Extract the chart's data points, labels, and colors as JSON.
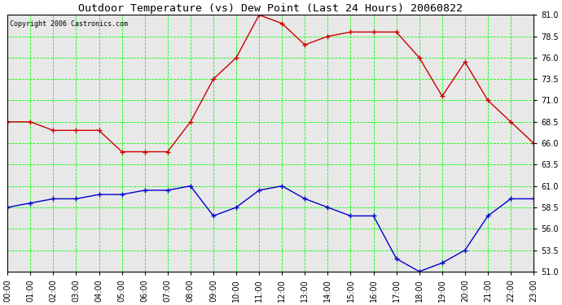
{
  "title": "Outdoor Temperature (vs) Dew Point (Last 24 Hours) 20060822",
  "copyright": "Copyright 2006 Castronics.com",
  "hours": [
    "00:00",
    "01:00",
    "02:00",
    "03:00",
    "04:00",
    "05:00",
    "06:00",
    "07:00",
    "08:00",
    "09:00",
    "10:00",
    "11:00",
    "12:00",
    "13:00",
    "14:00",
    "15:00",
    "16:00",
    "17:00",
    "18:00",
    "19:00",
    "20:00",
    "21:00",
    "22:00",
    "23:00"
  ],
  "temp": [
    68.5,
    68.5,
    67.5,
    67.5,
    67.5,
    65.0,
    65.0,
    65.0,
    68.5,
    73.5,
    76.0,
    81.0,
    80.0,
    77.5,
    78.5,
    79.0,
    79.0,
    79.0,
    76.0,
    71.5,
    75.5,
    71.0,
    68.5,
    66.0
  ],
  "dew": [
    58.5,
    59.0,
    59.5,
    59.5,
    60.0,
    60.0,
    60.5,
    60.5,
    61.0,
    57.5,
    58.5,
    60.5,
    61.0,
    59.5,
    58.5,
    57.5,
    57.5,
    52.5,
    51.0,
    52.0,
    53.5,
    57.5,
    59.5,
    59.5
  ],
  "temp_color": "#cc0000",
  "dew_color": "#0000cc",
  "bg_color": "#ffffff",
  "plot_bg": "#e8e8e8",
  "grid_color": "#00ff00",
  "title_color": "#000000",
  "copyright_color": "#000000",
  "ylim": [
    51.0,
    81.0
  ],
  "yticks": [
    51.0,
    53.5,
    56.0,
    58.5,
    61.0,
    63.5,
    66.0,
    68.5,
    71.0,
    73.5,
    76.0,
    78.5,
    81.0
  ],
  "figwidth": 6.9,
  "figheight": 3.75,
  "dpi": 100
}
